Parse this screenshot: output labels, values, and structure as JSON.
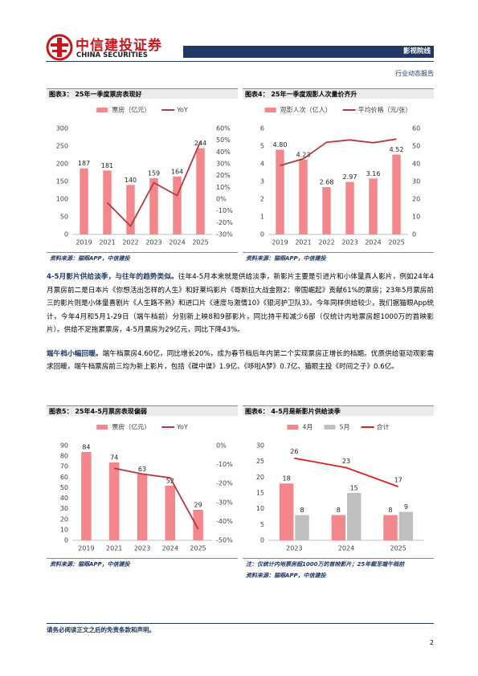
{
  "header": {
    "logo_cn": "中信建投证券",
    "logo_en": "CHINA SECURITIES",
    "sector": "影视院线",
    "report_type": "行业动态报告"
  },
  "chart_data": [
    {
      "type": "combo",
      "title": "图表3：  25年一季度票房表现好",
      "categories": [
        "2019",
        "2021",
        "2022",
        "2023",
        "2024",
        "2025"
      ],
      "series": [
        {
          "name": "票房（亿元）",
          "type": "bar",
          "color": "#f4878b",
          "values": [
            187,
            181,
            140,
            159,
            164,
            244
          ],
          "data_labels": true
        },
        {
          "name": "YoY",
          "type": "line",
          "axis": "y2",
          "color": "#b5393e",
          "values": [
            null,
            -3,
            -23,
            14,
            3,
            49
          ],
          "data_labels": false
        }
      ],
      "ylim": [
        0,
        300
      ],
      "yticks": [
        0,
        50,
        100,
        150,
        200,
        250,
        300
      ],
      "y2lim": [
        -30,
        60
      ],
      "y2ticks": [
        {
          "value": -30,
          "label": "-30%"
        },
        {
          "value": -20,
          "label": "-20%"
        },
        {
          "value": -10,
          "label": "-10%"
        },
        {
          "value": 0,
          "label": "0%"
        },
        {
          "value": 10,
          "label": "10%"
        },
        {
          "value": 20,
          "label": "20%"
        },
        {
          "value": 30,
          "label": "30%"
        },
        {
          "value": 40,
          "label": "40%"
        },
        {
          "value": 50,
          "label": "50%"
        },
        {
          "value": 60,
          "label": "60%"
        }
      ],
      "legend": "top",
      "source": "资料来源：猫眼APP，中信建投"
    },
    {
      "type": "combo",
      "title": "图表4：  25年一季度观影人次量价齐升",
      "categories": [
        "2019",
        "2021",
        "2022",
        "2023",
        "2024",
        "2025"
      ],
      "series": [
        {
          "name": "观影人次（亿人）",
          "type": "bar",
          "color": "#f4878b",
          "values": [
            4.8,
            4.23,
            2.68,
            2.97,
            3.16,
            4.52
          ],
          "value_labels": [
            "4.80",
            "4.23",
            "2.68",
            "2.97",
            "3.16",
            "4.52"
          ],
          "data_labels": true
        },
        {
          "name": "平均价格（元/张）",
          "type": "line",
          "axis": "y2",
          "color": "#b5393e",
          "values": [
            39,
            42.8,
            52.2,
            53.5,
            51.9,
            54
          ],
          "data_labels": false
        }
      ],
      "ylim": [
        0,
        6
      ],
      "yticks": [
        0,
        1,
        2,
        3,
        4,
        5,
        6
      ],
      "y2lim": [
        0,
        60
      ],
      "y2ticks": [
        0,
        10,
        20,
        30,
        40,
        50,
        60
      ],
      "legend": "top",
      "source": "资料来源：猫眼APP，中信建投"
    },
    {
      "type": "combo",
      "title": "图表5：  25年4-5月票房表现偏弱",
      "categories": [
        "2019",
        "2021",
        "2023",
        "2024",
        "2025"
      ],
      "series": [
        {
          "name": "票房（亿元）",
          "type": "bar",
          "color": "#f4878b",
          "values": [
            84,
            74,
            63,
            52,
            29
          ],
          "data_labels": true
        },
        {
          "name": "YoY",
          "type": "line",
          "axis": "y2",
          "color": "#b5393e",
          "values": [
            null,
            -12,
            -15,
            -17,
            -44
          ],
          "data_labels": false
        }
      ],
      "ylim": [
        0,
        90
      ],
      "yticks": [
        0,
        10,
        20,
        30,
        40,
        50,
        60,
        70,
        80,
        90
      ],
      "y2lim": [
        -50,
        0
      ],
      "y2ticks": [
        {
          "value": -50,
          "label": "-50%"
        },
        {
          "value": -40,
          "label": "-40%"
        },
        {
          "value": -30,
          "label": "-30%"
        },
        {
          "value": -20,
          "label": "-20%"
        },
        {
          "value": -10,
          "label": "-10%"
        },
        {
          "value": 0,
          "label": "0%"
        }
      ],
      "legend": "top",
      "source": "资料来源：猫眼APP，中信建投"
    },
    {
      "type": "combo",
      "title": "图表6：  4-5月是新影片供给淡季",
      "categories": [
        "2023",
        "2024",
        "2025"
      ],
      "series": [
        {
          "name": "4月",
          "type": "bar",
          "color": "#f4878b",
          "values": [
            18,
            8,
            8
          ],
          "data_labels": true
        },
        {
          "name": "5月",
          "type": "bar",
          "color": "#bfbfbf",
          "values": [
            8,
            15,
            9
          ],
          "data_labels": true
        },
        {
          "name": "合计",
          "type": "line",
          "color": "#e02020",
          "values": [
            26,
            23,
            17
          ],
          "data_labels": true
        }
      ],
      "ylim": [
        0,
        30
      ],
      "yticks": [
        0,
        5,
        10,
        15,
        20,
        25,
        30
      ],
      "legend": "top",
      "note": "注：仅统计内地票房超1000万的首映影片；25年截至端午档前",
      "source": "资料来源：猫眼APP，中信建投"
    }
  ],
  "paragraphs": [
    {
      "lead": "4-5月影片供给淡季，与往年的趋势类似。",
      "text": "往年4-5月本来就是供给淡季，新影片主要是引进片和小体量真人影片，例如24年4月票房前二是日本片《你想活出怎样的人生》和好莱坞影片《哥斯拉大战金刚2：帝国崛起》贡献61%的票房；23年5月票房前三的影片则是小体量喜剧片《人生路不熟》和进口片《速度与激情10》《银河护卫队3》。今年同样供给较少，我们据猫眼App统计，今年4月和5月1-29日（端午档前）分别新上映8和9部影片，同比持平和减少6部（仅统计内地票房超1000万的首映影片）。供给不足拖累票房，4-5月票房为29亿元，同比下降43%。"
    },
    {
      "lead": "端午档小幅回暖。",
      "text": "端午档票房4.60亿，同比增长20%，成为春节档后年内第二个实现票房正增长的档期。优质供给驱动观影需求回暖，端午档票房前三均为新上影片，包括《碟中谍》1.9亿、《哆啦A梦》0.7亿、猫眼主投《时间之子》0.6亿。"
    }
  ],
  "footer": {
    "disclaimer": "请务必阅读正文之后的免责条款和声明。",
    "page": "2"
  }
}
